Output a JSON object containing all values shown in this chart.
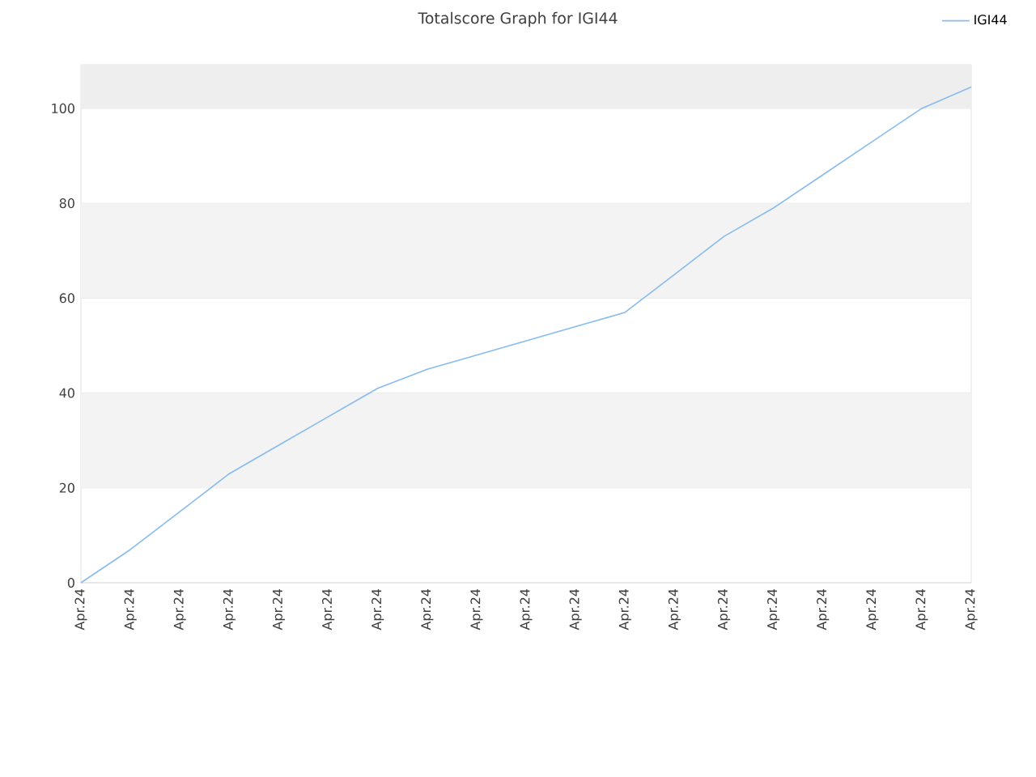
{
  "chart_data": {
    "type": "line",
    "title": "Totalscore Graph for IGI44",
    "categories": [
      "Apr.24",
      "Apr.24",
      "Apr.24",
      "Apr.24",
      "Apr.24",
      "Apr.24",
      "Apr.24",
      "Apr.24",
      "Apr.24",
      "Apr.24",
      "Apr.24",
      "Apr.24",
      "Apr.24",
      "Apr.24",
      "Apr.24",
      "Apr.24",
      "Apr.24",
      "Apr.24",
      "Apr.24"
    ],
    "series": [
      {
        "name": "IGI44",
        "color": "#88bbee",
        "values": [
          0,
          7,
          15,
          23,
          29,
          35,
          41,
          45,
          48,
          51,
          54,
          57,
          65,
          73,
          79,
          86,
          93,
          100,
          104.5
        ]
      }
    ],
    "ylim": [
      0,
      109.2
    ],
    "yticks": [
      0,
      20,
      40,
      60,
      80,
      100
    ],
    "bands": [
      {
        "axis": "y",
        "from": 20,
        "to": 40,
        "color": "#f3f3f3"
      },
      {
        "axis": "y",
        "from": 60,
        "to": 80,
        "color": "#f3f3f3"
      },
      {
        "axis": "y",
        "from": 100,
        "to": 109.2,
        "color": "#eeeeee"
      }
    ],
    "grid": "y",
    "legend": "top right",
    "marker": "none",
    "line_style": "solid"
  }
}
